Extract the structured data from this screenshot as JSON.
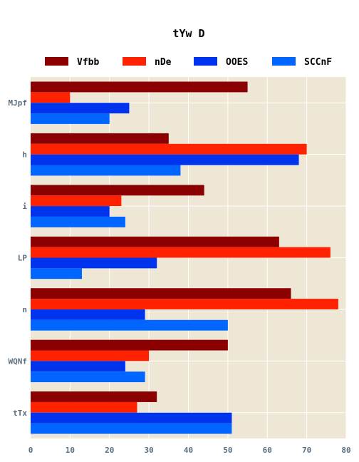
{
  "chart_data": {
    "type": "bar",
    "orientation": "horizontal",
    "title": "tYw D",
    "xlabel": "",
    "ylabel": "",
    "categories": [
      "MJpf",
      "h",
      "i",
      "LP",
      "n",
      "WQNf",
      "tTx"
    ],
    "series": [
      {
        "name": "Vfbb",
        "color": "#8b0000",
        "values": [
          55,
          35,
          44,
          63,
          66,
          50,
          32
        ]
      },
      {
        "name": "nDe",
        "color": "#ff2200",
        "values": [
          10,
          70,
          23,
          76,
          78,
          30,
          27
        ]
      },
      {
        "name": "OOES",
        "color": "#0033ee",
        "values": [
          25,
          68,
          20,
          32,
          29,
          24,
          51
        ]
      },
      {
        "name": "SCCnF",
        "color": "#0066ff",
        "values": [
          20,
          38,
          24,
          13,
          50,
          29,
          51
        ]
      }
    ],
    "xlim": [
      0,
      80
    ],
    "xticks": [
      0,
      10,
      20,
      30,
      40,
      50,
      60,
      70,
      80
    ],
    "grid": true,
    "legend_position": "top",
    "background_color": "#efe7d6",
    "grid_color": "#ffffff",
    "tick_color": "#5a6e7e"
  }
}
